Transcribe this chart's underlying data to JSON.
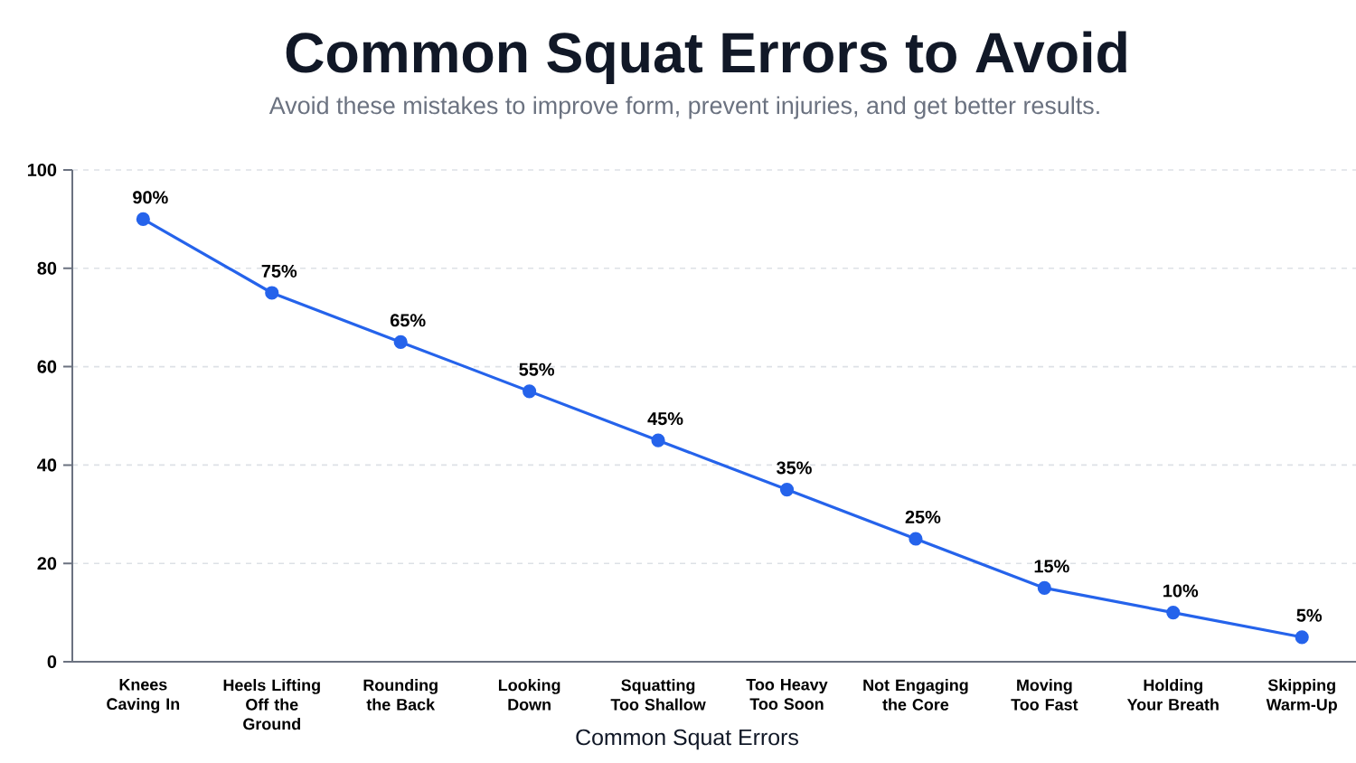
{
  "chart_data": {
    "type": "line",
    "title": "Common Squat Errors to Avoid",
    "subtitle": "Avoid these mistakes to improve form, prevent injuries, and get better results.",
    "xlabel": "Common Squat Errors",
    "categories": [
      "Knees Caving In",
      "Heels Lifting Off the Ground",
      "Rounding the Back",
      "Looking Down",
      "Squatting Too Shallow",
      "Too Heavy Too Soon",
      "Not Engaging the Core",
      "Moving Too Fast",
      "Holding Your Breath",
      "Skipping Warm-Up"
    ],
    "values": [
      90,
      75,
      65,
      55,
      45,
      35,
      25,
      15,
      10,
      5
    ],
    "value_labels": [
      "90%",
      "75%",
      "65%",
      "55%",
      "45%",
      "35%",
      "25%",
      "15%",
      "10%",
      "5%"
    ],
    "color": "#2563eb",
    "ylim": [
      0,
      100
    ],
    "yticks": [
      0,
      20,
      40,
      60,
      80,
      100
    ],
    "grid": "y",
    "marker": "circle",
    "line_style": "solid"
  }
}
